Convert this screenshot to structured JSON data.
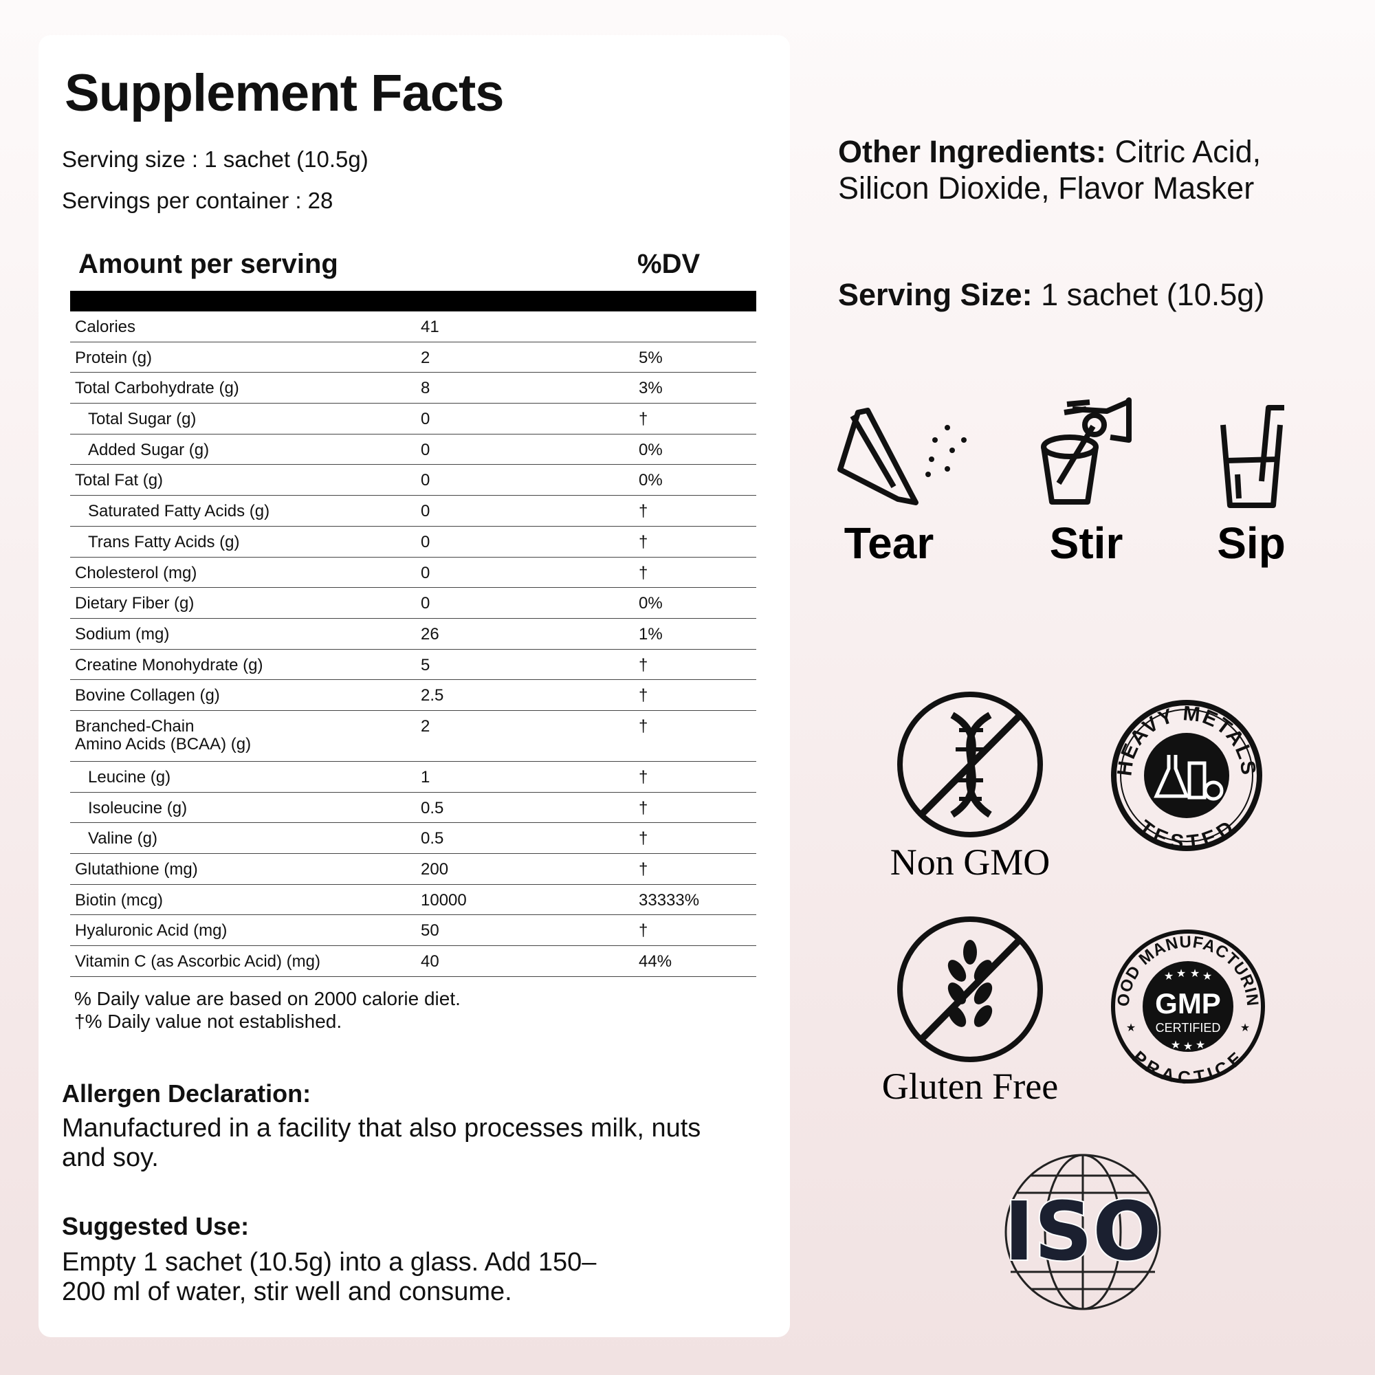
{
  "header": {
    "title": "Supplement Facts",
    "serving_size": "Serving size : 1 sachet (10.5g)",
    "servings_per_container": "Servings per container : 28"
  },
  "table": {
    "columns": [
      "Amount per serving",
      "%DV"
    ],
    "rows": [
      {
        "name": "Calories",
        "amount": 41
      },
      {
        "name": "Protein (g)",
        "amount": 2,
        "dv": "5%"
      },
      {
        "name": "Total Carbohydrate (g)",
        "amount": 8,
        "dv": "3%"
      },
      {
        "name": "Total Sugar (g)",
        "amount": 0,
        "dv": "†",
        "indent": true
      },
      {
        "name": "Added Sugar (g)",
        "amount": 0,
        "dv": "0%",
        "indent": true
      },
      {
        "name": "Total Fat (g)",
        "amount": 0,
        "dv": "0%"
      },
      {
        "name": "Saturated Fatty Acids (g)",
        "amount": 0,
        "dv": "†",
        "indent": true
      },
      {
        "name": "Trans Fatty Acids (g)",
        "amount": 0,
        "dv": "†",
        "indent": true
      },
      {
        "name": "Cholesterol (mg)",
        "amount": 0,
        "dv": "†"
      },
      {
        "name": "Dietary Fiber (g)",
        "amount": 0,
        "dv": "0%"
      },
      {
        "name": "Sodium (mg)",
        "amount": 26,
        "dv": "1%"
      },
      {
        "name": "Creatine Monohydrate (g)",
        "amount": 5,
        "dv": "†"
      },
      {
        "name": "Bovine Collagen (g)",
        "amount": 2.5,
        "dv": "†"
      },
      {
        "name": "Branched-Chain\nAmino Acids (BCAA) (g)",
        "amount": 2,
        "dv": "†"
      },
      {
        "name": "Leucine (g)",
        "amount": 1,
        "dv": "†",
        "indent": true
      },
      {
        "name": "Isoleucine (g)",
        "amount": 0.5,
        "dv": "†",
        "indent": true
      },
      {
        "name": "Valine (g)",
        "amount": 0.5,
        "dv": "†",
        "indent": true
      },
      {
        "name": "Glutathione (mg)",
        "amount": 200,
        "dv": "†"
      },
      {
        "name": "Biotin (mcg)",
        "amount": 10000,
        "dv": "33333%"
      },
      {
        "name": "Hyaluronic Acid (mg)",
        "amount": 50,
        "dv": "†"
      },
      {
        "name": "Vitamin C (as Ascorbic Acid) (mg)",
        "amount": 40,
        "dv": "44%"
      }
    ],
    "footnotes": [
      "% Daily value are based on 2000 calorie diet.",
      "†% Daily value not established."
    ]
  },
  "allergen": {
    "title": "Allergen Declaration:",
    "text": "Manufactured in a facility that also processes milk, nuts and soy."
  },
  "suggested_use": {
    "title": "Suggested Use:",
    "text": "Empty 1 sachet (10.5g) into a glass. Add 150–200 ml of water, stir well and consume."
  },
  "other_ingredients": {
    "label": "Other Ingredients:",
    "text": "Citric Acid, Silicon Dioxide, Flavor Masker"
  },
  "serving": {
    "label": "Serving Size:",
    "text": "1 sachet (10.5g)"
  },
  "steps": [
    "Tear",
    "Stir",
    "Sip"
  ],
  "badges": {
    "non_gmo": "Non GMO",
    "gluten_free": "Gluten Free",
    "heavy_metals": {
      "top": "HEAVY METALS",
      "bottom": "TESTED"
    },
    "gmp": {
      "top": "GOOD MANUFACTURING",
      "center": "GMP",
      "sub": "CERTIFIED",
      "bottom": "PRACTICE"
    },
    "iso": "ISO"
  }
}
